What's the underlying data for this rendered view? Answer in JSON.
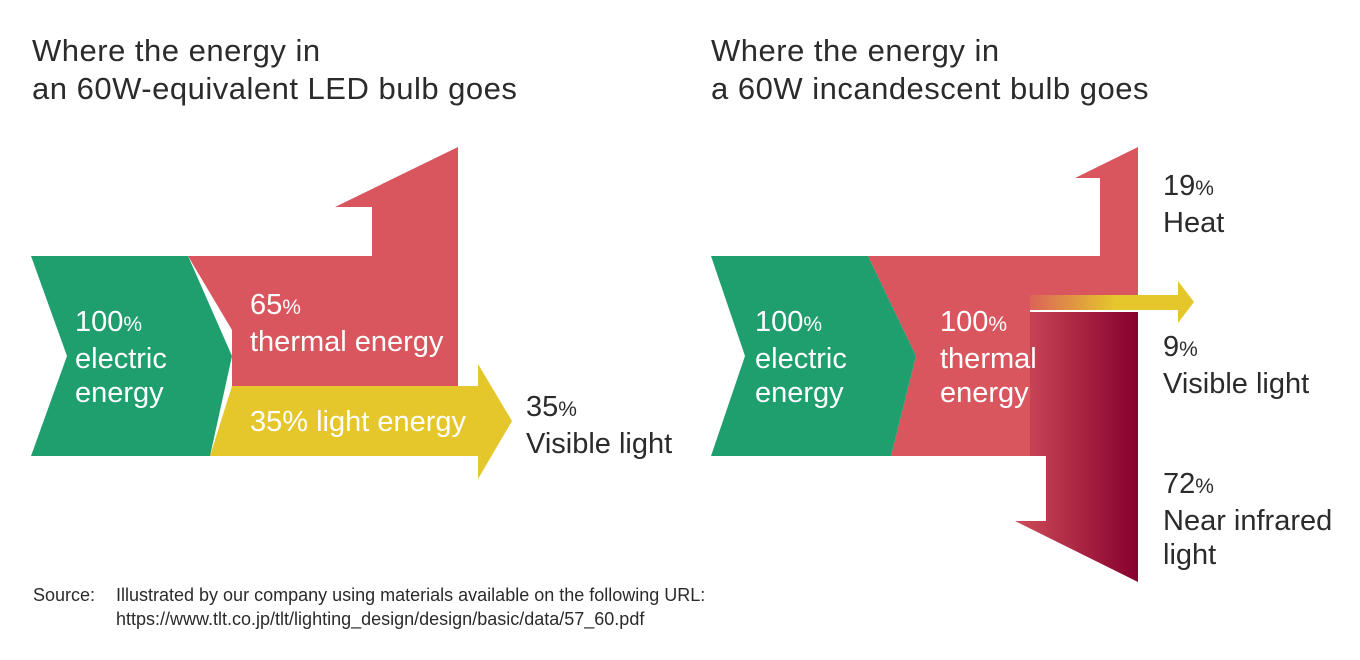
{
  "led": {
    "title_line1": "Where the energy in",
    "title_line2": "an 60W-equivalent LED bulb goes",
    "input": {
      "value": "100",
      "unit": "%",
      "line1": "electric",
      "line2": "energy"
    },
    "thermal": {
      "value": "65",
      "unit": "%",
      "label": "thermal energy"
    },
    "light": {
      "label": "35% light energy"
    },
    "output": {
      "value": "35",
      "unit": "%",
      "label": "Visible light"
    }
  },
  "incandescent": {
    "title_line1": "Where the energy in",
    "title_line2": "a 60W incandescent bulb goes",
    "input": {
      "value": "100",
      "unit": "%",
      "line1": "electric",
      "line2": "energy"
    },
    "thermal": {
      "value": "100",
      "unit": "%",
      "line1": "thermal",
      "line2": "energy"
    },
    "outputs": {
      "heat": {
        "value": "19",
        "unit": "%",
        "label": "Heat"
      },
      "visible": {
        "value": "9",
        "unit": "%",
        "label": "Visible light"
      },
      "infrared": {
        "value": "72",
        "unit": "%",
        "line1": "Near infrared",
        "line2": "light"
      }
    }
  },
  "colors": {
    "electric": "#1f9e6e",
    "thermal": "#d9565f",
    "light": "#e5c62b",
    "infrared_dark": "#86002e"
  },
  "source": {
    "label": "Source:",
    "line1": "Illustrated by our company using materials available on the following URL:",
    "line2": "https://www.tlt.co.jp/tlt/lighting_design/design/basic/data/57_60.pdf"
  }
}
